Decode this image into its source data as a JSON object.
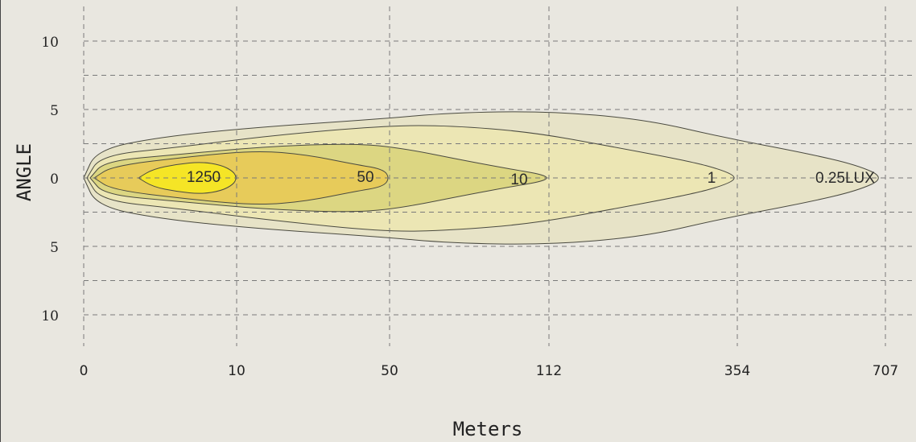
{
  "chart_data": {
    "type": "contour",
    "xlabel": "Meters",
    "ylabel": "ANGLE",
    "x_ticks": [
      "0",
      "10",
      "50",
      "112",
      "354",
      "707"
    ],
    "y_ticks_top": [
      "10",
      "5",
      "0"
    ],
    "y_ticks_bottom": [
      "5",
      "10"
    ],
    "ylim": [
      -12.5,
      12.5
    ],
    "grid": true,
    "series": [
      {
        "name": "0.25LUX",
        "reach_m": 707,
        "max_half_angle_deg": 4.9,
        "color": "#e7e3c7"
      },
      {
        "name": "1",
        "reach_m": 354,
        "max_half_angle_deg": 4.0,
        "color": "#ece6b4"
      },
      {
        "name": "10",
        "reach_m": 112,
        "max_half_angle_deg": 2.5,
        "color": "#dcd682"
      },
      {
        "name": "50",
        "reach_m": 50,
        "max_half_angle_deg": 2.0,
        "color": "#e7cb5a"
      },
      {
        "name": "1250",
        "reach_m": 10,
        "max_half_angle_deg": 1.1,
        "color": "#f5e526"
      }
    ]
  }
}
